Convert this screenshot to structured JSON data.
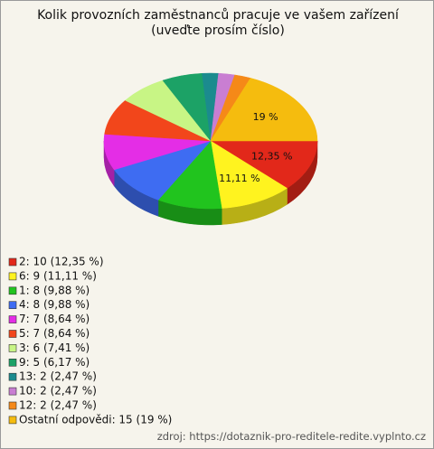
{
  "chart_data": {
    "type": "pie",
    "title": "Kolik provozních zaměstnanců pracuje ve vašem zařízení (uveďte prosím číslo)",
    "categories": [
      "2: 10 (12,35 %)",
      "6: 9 (11,11 %)",
      "1: 8 (9,88 %)",
      "4: 8 (9,88 %)",
      "7: 7 (8,64 %)",
      "5: 7 (8,64 %)",
      "3: 6 (7,41 %)",
      "9: 5 (6,17 %)",
      "13: 2 (2,47 %)",
      "10: 2 (2,47 %)",
      "12: 2 (2,47 %)",
      "Ostatní odpovědi: 15 (19 %)"
    ],
    "values": [
      12.35,
      11.11,
      9.88,
      9.88,
      8.64,
      8.64,
      7.41,
      6.17,
      2.47,
      2.47,
      2.47,
      19
    ],
    "value_labels": [
      "12,35 %",
      "11,11 %",
      null,
      null,
      null,
      null,
      null,
      null,
      null,
      null,
      null,
      "19 %"
    ],
    "colors": [
      "#e2281a",
      "#fff31f",
      "#21c41e",
      "#3e6cf2",
      "#e42de6",
      "#f2461b",
      "#c8f585",
      "#1ca266",
      "#1b8b8e",
      "#c97ed2",
      "#f58918",
      "#f5bc0e"
    ],
    "source": "zdroj: https://dotaznik-pro-reditele-redite.vyplnto.cz"
  }
}
